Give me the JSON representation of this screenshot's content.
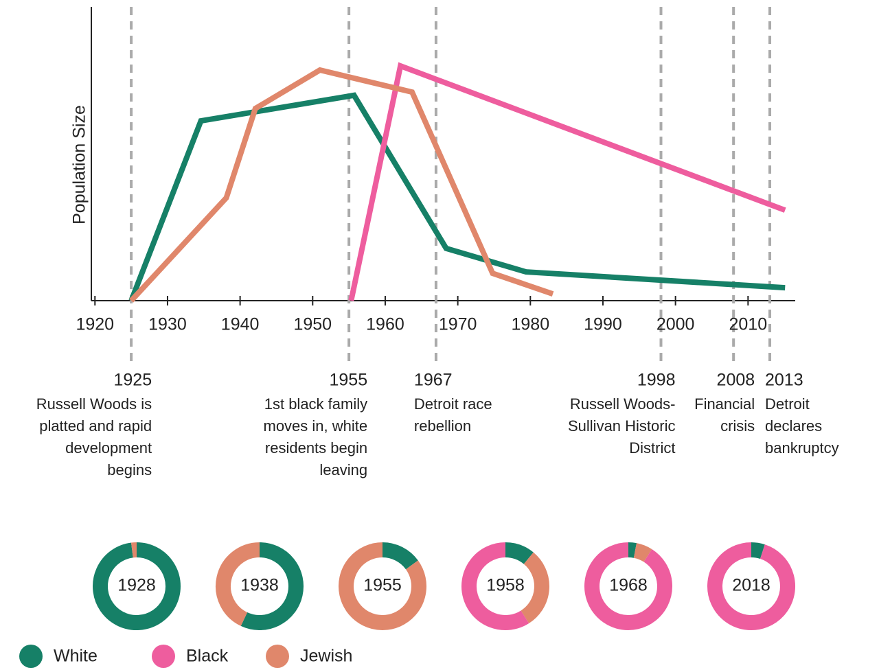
{
  "chart_data": {
    "type": "line",
    "y_label": "Population Size",
    "xlim": [
      1919.5,
      2016.5
    ],
    "ylim": [
      0,
      100
    ],
    "xticks": [
      1920,
      1930,
      1940,
      1950,
      1960,
      1970,
      1980,
      1990,
      2000,
      2010
    ],
    "series": [
      {
        "name": "White",
        "color": "#168067",
        "x": [
          1925,
          1934.6,
          1955.7,
          1968.4,
          1979.4,
          2015.1
        ],
        "values": [
          0,
          61.2,
          69.9,
          17.8,
          9.8,
          4.4
        ]
      },
      {
        "name": "Black",
        "color": "#ee5d9e",
        "x": [
          1955.3,
          1962.1,
          2015.1
        ],
        "values": [
          0,
          79.9,
          30.8
        ]
      },
      {
        "name": "Jewish",
        "color": "#e0876b",
        "x": [
          1925,
          1938.1,
          1942.1,
          1951,
          1963.7,
          1974.8,
          1983.1
        ],
        "values": [
          0,
          35,
          65.4,
          78.5,
          71,
          9.3,
          2.3
        ]
      }
    ],
    "events": [
      {
        "year": 1925,
        "lines": [
          "Russell Woods is",
          "platted and rapid",
          "development",
          "begins"
        ]
      },
      {
        "year": 1955,
        "lines": [
          "1st black family",
          "moves in, white",
          "residents begin",
          "leaving"
        ]
      },
      {
        "year": 1967,
        "lines": [
          "Detroit race",
          "rebellion"
        ]
      },
      {
        "year": 1998,
        "lines": [
          "Russell Woods-",
          "Sullivan Historic",
          "District"
        ]
      },
      {
        "year": 2008,
        "lines": [
          "Financial",
          "crisis"
        ]
      },
      {
        "year": 2013,
        "lines": [
          "Detroit",
          "declares",
          "bankruptcy"
        ]
      }
    ],
    "donuts": [
      {
        "label": "1928",
        "values": [
          98,
          0,
          2
        ]
      },
      {
        "label": "1938",
        "values": [
          57,
          0,
          43
        ]
      },
      {
        "label": "1955",
        "values": [
          15,
          0,
          85
        ]
      },
      {
        "label": "1958",
        "values": [
          11,
          59,
          30
        ]
      },
      {
        "label": "1968",
        "values": [
          3,
          91,
          6
        ]
      },
      {
        "label": "2018",
        "values": [
          5,
          95,
          0
        ]
      }
    ]
  }
}
